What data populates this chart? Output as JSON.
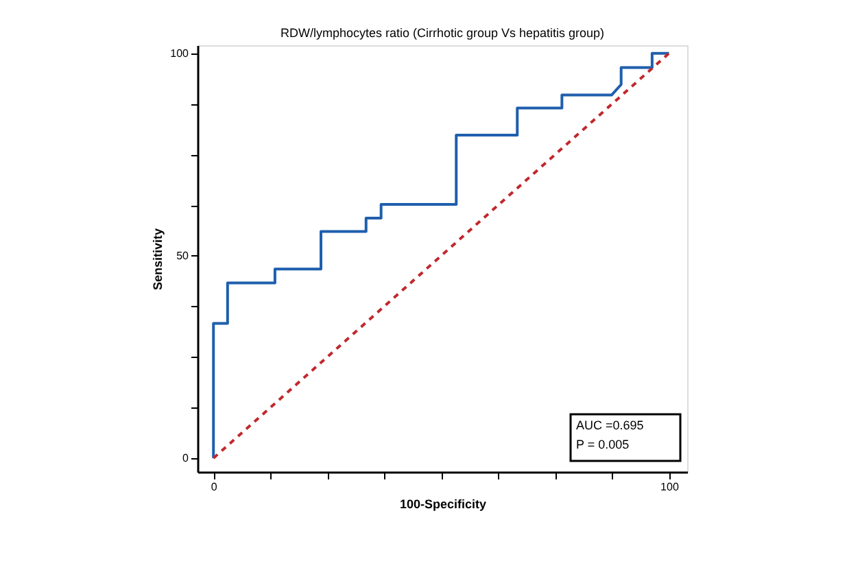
{
  "chart_data": {
    "type": "line",
    "title": "RDW/lymphocytes ratio (Cirrhotic group Vs hepatitis group)",
    "xlabel": "100-Specificity",
    "ylabel": "Sensitivity",
    "xlim": [
      -3.5,
      104
    ],
    "ylim": [
      -3.4,
      102
    ],
    "xticks": [
      0,
      {
        "value": 12.5,
        "label": null
      },
      {
        "value": 25,
        "label": null
      },
      {
        "value": 37.5,
        "label": null
      },
      {
        "value": 50,
        "label": null
      },
      {
        "value": 62.5,
        "label": null
      },
      {
        "value": 75,
        "label": null
      },
      {
        "value": 87.5,
        "label": null
      },
      100
    ],
    "yticks": [
      0,
      {
        "value": 12.5,
        "label": null
      },
      {
        "value": 25,
        "label": null
      },
      {
        "value": 37.5,
        "label": null
      },
      50,
      {
        "value": 62.5,
        "label": null
      },
      {
        "value": 75,
        "label": null
      },
      {
        "value": 87.5,
        "label": null
      },
      100
    ],
    "grid": false,
    "legend": false,
    "marker": "none",
    "series": [
      {
        "color": "#1f5fad",
        "line_style": "solid",
        "x": [
          0,
          0,
          3.1,
          3.1,
          13.5,
          13.5,
          23.6,
          23.6,
          33.5,
          33.5,
          36.8,
          36.8,
          53.3,
          53.3,
          66.7,
          66.7,
          76.5,
          76.5,
          87.4,
          89.5,
          89.5,
          96.3,
          96.3,
          100
        ],
        "values": [
          0,
          33.3,
          33.3,
          43.3,
          43.3,
          46.7,
          46.7,
          56,
          56,
          59.3,
          59.3,
          62.7,
          62.7,
          79.8,
          79.8,
          86.5,
          86.5,
          89.7,
          89.7,
          92.3,
          96.5,
          96.5,
          100,
          100
        ]
      },
      {
        "color": "#c0282d",
        "line_style": "dashed",
        "x": [
          0,
          100
        ],
        "values": [
          0,
          100
        ]
      }
    ],
    "annotations": [
      "AUC =0.695",
      "P = 0.005"
    ]
  }
}
